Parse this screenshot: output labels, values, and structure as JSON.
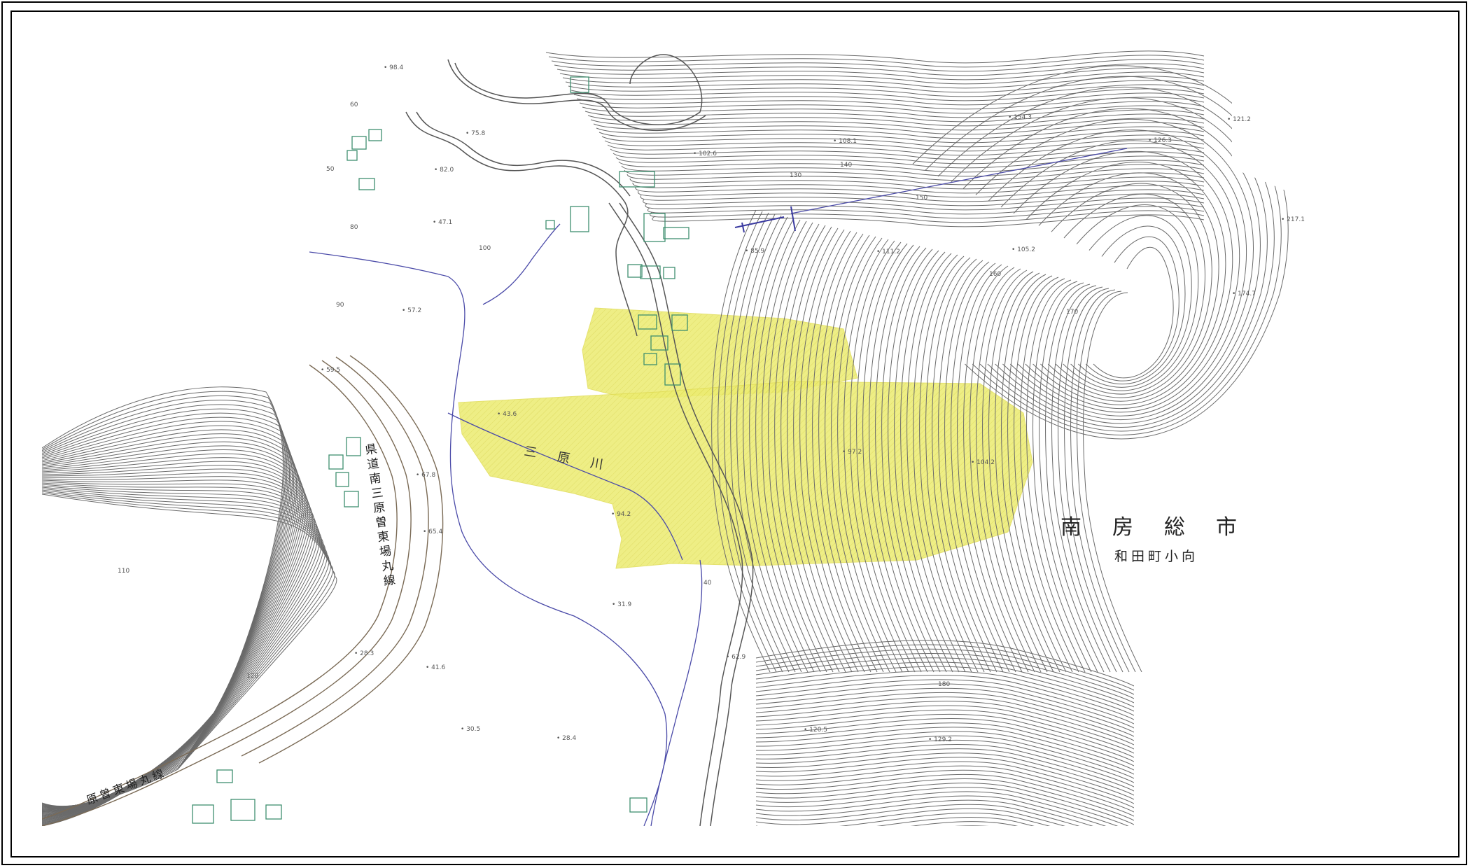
{
  "place_labels": {
    "city": "南房総市",
    "town": "和田町小向"
  },
  "road_labels": {
    "road_vertical": "県道南三原曽東場丸線",
    "road_bottom": "原曽東場丸線"
  },
  "river_label": "三原川",
  "spot_heights": [
    "98.4",
    "75.8",
    "82.0",
    "47.1",
    "57.2",
    "59.5",
    "67.8",
    "43.6",
    "65.4",
    "102.6",
    "108.1",
    "154.3",
    "126.3",
    "85.9",
    "111.2",
    "105.2",
    "121.2",
    "217.1",
    "174.7",
    "97.2",
    "104.2",
    "94.2",
    "31.9",
    "28.3",
    "41.6",
    "30.5",
    "28.4",
    "120.5",
    "129.2",
    "62.9"
  ],
  "contour_labels": [
    "60",
    "50",
    "90",
    "80",
    "100",
    "110",
    "120",
    "130",
    "140",
    "150",
    "160",
    "170",
    "180",
    "40"
  ],
  "colors": {
    "hazard_zone": "#ecec70",
    "contour": "#6a6a6a",
    "river": "#4a4aa8",
    "road": "#7a6a55",
    "building": "#3f8f6f",
    "frame": "#000000"
  }
}
